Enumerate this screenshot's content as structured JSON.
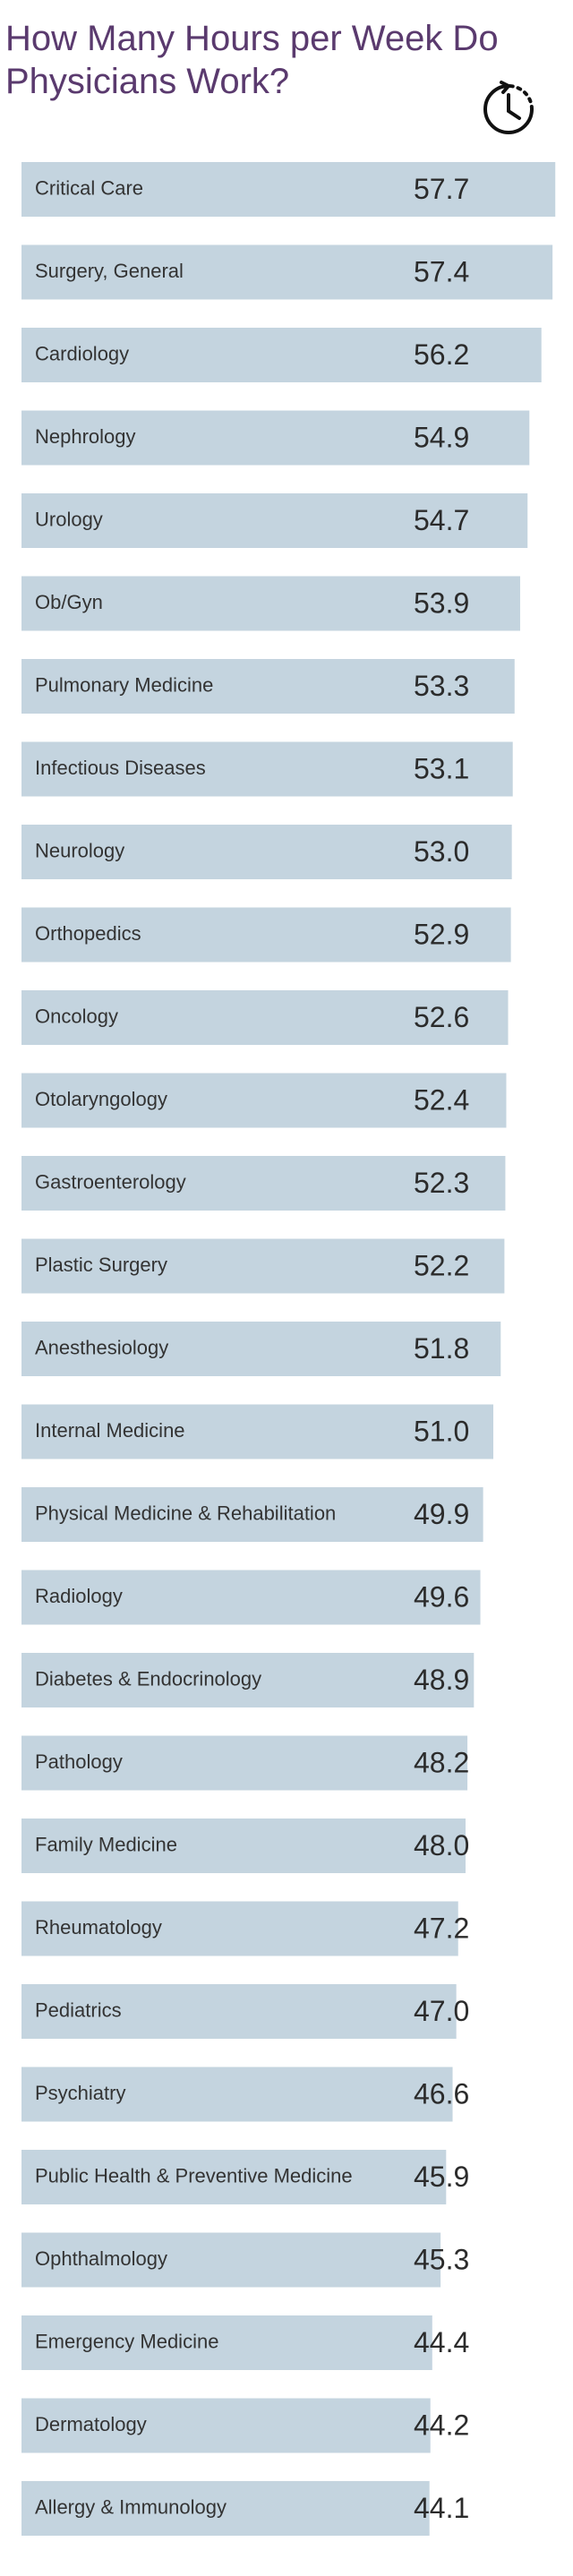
{
  "chart_data": {
    "type": "barh",
    "title": [
      "How Many Hours per Week Do",
      "Physicians Work?"
    ],
    "categories": [
      "Critical Care",
      "Surgery, General",
      "Cardiology",
      "Nephrology",
      "Urology",
      "Ob/Gyn",
      "Pulmonary Medicine",
      "Infectious Diseases",
      "Neurology",
      "Orthopedics",
      "Oncology",
      "Otolaryngology",
      "Gastroenterology",
      "Plastic Surgery",
      "Anesthesiology",
      "Internal Medicine",
      "Physical Medicine & Rehabilitation",
      "Radiology",
      "Diabetes & Endocrinology",
      "Pathology",
      "Family Medicine",
      "Rheumatology",
      "Pediatrics",
      "Psychiatry",
      "Public Health & Preventive Medicine",
      "Ophthalmology",
      "Emergency Medicine",
      "Dermatology",
      "Allergy & Immunology"
    ],
    "values": [
      57.7,
      57.4,
      56.2,
      54.9,
      54.7,
      53.9,
      53.3,
      53.1,
      53.0,
      52.9,
      52.6,
      52.4,
      52.3,
      52.2,
      51.8,
      51.0,
      49.9,
      49.6,
      48.9,
      48.2,
      48.0,
      47.2,
      47.0,
      46.6,
      45.9,
      45.3,
      44.4,
      44.2,
      44.1
    ],
    "value_labels": [
      "57.7",
      "57.4",
      "56.2",
      "54.9",
      "54.7",
      "53.9",
      "53.3",
      "53.1",
      "53.0",
      "52.9",
      "52.6",
      "52.4",
      "52.3",
      "52.2",
      "51.8",
      "51.0",
      "49.9",
      "49.6",
      "48.9",
      "48.2",
      "48.0",
      "47.2",
      "47.0",
      "46.6",
      "45.9",
      "45.3",
      "44.4",
      "44.2",
      "44.1"
    ],
    "color": "#c4d4df",
    "xlim": [
      0,
      60
    ]
  }
}
